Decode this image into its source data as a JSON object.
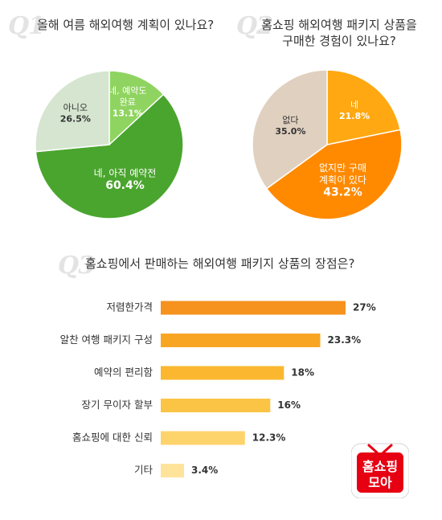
{
  "q1": {
    "number": "Q1",
    "title": "올해 여름 해외여행 계획이 있나요?",
    "chart_data": {
      "type": "pie",
      "title": "올해 여름 해외여행 계획이 있나요?",
      "slices": [
        {
          "label": [
            "네, 예약도",
            "완료"
          ],
          "value": 13.1,
          "value_label": "13.1%",
          "color": "#8fd460"
        },
        {
          "label": [
            "네, 아직 예약전"
          ],
          "value": 60.4,
          "value_label": "60.4%",
          "color": "#4aa52e"
        },
        {
          "label": [
            "아니오"
          ],
          "value": 26.5,
          "value_label": "26.5%",
          "color": "#d5e5cf"
        }
      ]
    }
  },
  "q2": {
    "number": "Q2",
    "title_lines": [
      "홈쇼핑 해외여행 패키지 상품을",
      "구매한 경험이 있나요?"
    ],
    "chart_data": {
      "type": "pie",
      "title": "홈쇼핑 해외여행 패키지 상품을 구매한 경험이 있나요?",
      "slices": [
        {
          "label": [
            "네"
          ],
          "value": 21.8,
          "value_label": "21.8%",
          "color": "#ffa812"
        },
        {
          "label": [
            "없지만 구매",
            "계획이 있다"
          ],
          "value": 43.2,
          "value_label": "43.2%",
          "color": "#ff8a00"
        },
        {
          "label": [
            "없다"
          ],
          "value": 35.0,
          "value_label": "35.0%",
          "color": "#e0d0c0"
        }
      ]
    }
  },
  "q3": {
    "number": "Q3",
    "title": "홈쇼핑에서 판매하는 해외여행 패키지 상품의 장점은?",
    "chart_data": {
      "type": "bar",
      "orientation": "horizontal",
      "title": "홈쇼핑에서 판매하는 해외여행 패키지 상품의 장점은?",
      "categories": [
        "저렴한가격",
        "알찬 여행 패키지 구성",
        "예약의 편리함",
        "장기 무이자 할부",
        "홈쇼핑에 대한 신뢰",
        "기타"
      ],
      "values": [
        27,
        23.3,
        18,
        16,
        12.3,
        3.4
      ],
      "value_labels": [
        "27%",
        "23.3%",
        "18%",
        "16%",
        "12.3%",
        "3.4%"
      ],
      "colors": [
        "#f6921e",
        "#f8a524",
        "#fab72f",
        "#fcc445",
        "#fdd36b",
        "#fee39a"
      ]
    }
  },
  "logo": {
    "line1": "홈쇼핑",
    "line2": "모아",
    "color": "#e60012"
  }
}
